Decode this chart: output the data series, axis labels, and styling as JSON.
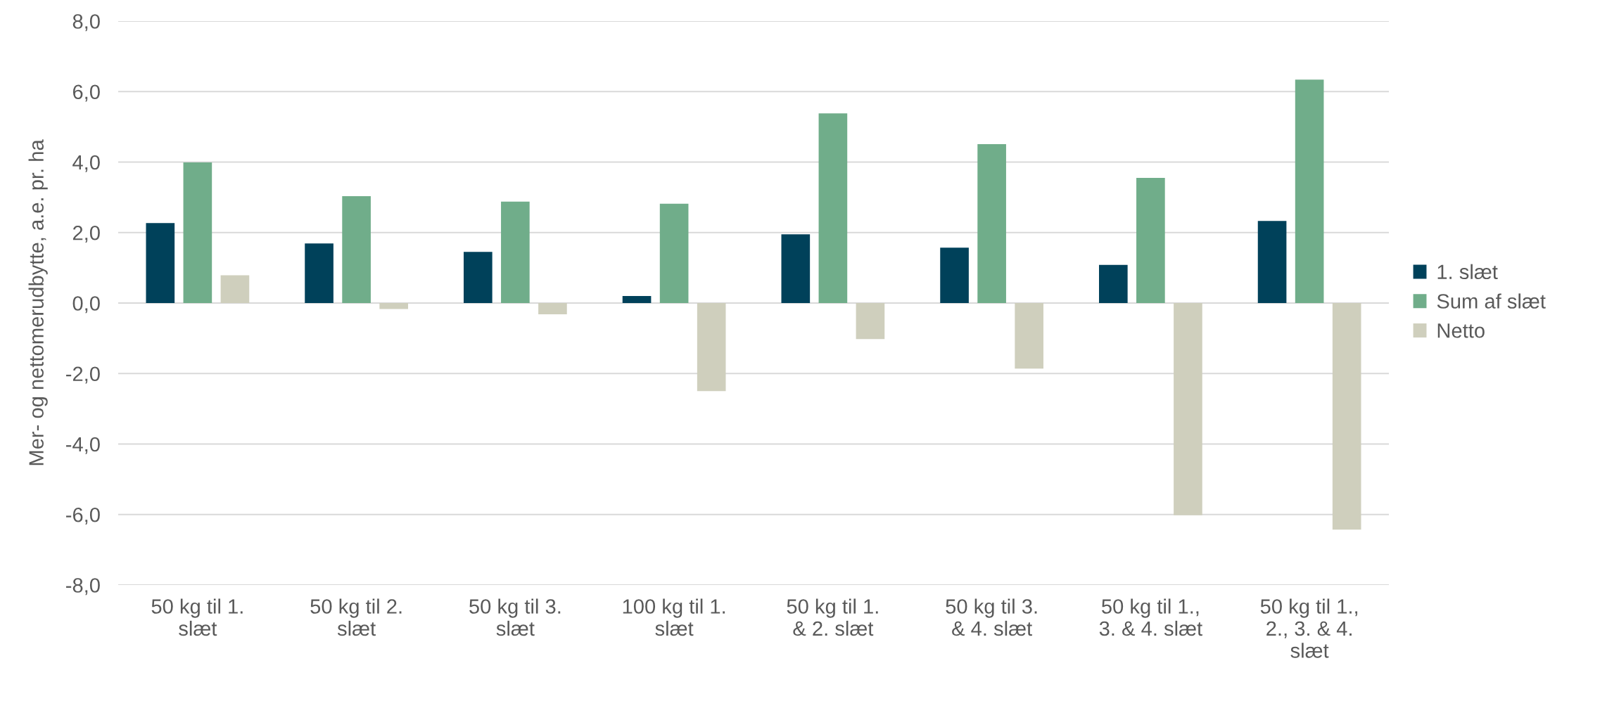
{
  "chart_data": {
    "type": "bar",
    "ylabel": "Mer- og nettomerudbytte, a.e. pr. ha",
    "categories": [
      "50 kg til 1. slæt",
      "50 kg til 2. slæt",
      "50 kg til 3. slæt",
      "100 kg til 1. slæt",
      "50 kg til 1. & 2. slæt",
      "50 kg til 3. & 4. slæt",
      "50 kg til 1., 3. & 4. slæt",
      "50 kg til 1., 2., 3. & 4. slæt"
    ],
    "series": [
      {
        "name": "1. slæt",
        "color": "#00415a",
        "values": [
          2.27,
          1.69,
          1.45,
          0.2,
          1.95,
          1.57,
          1.08,
          2.33
        ]
      },
      {
        "name": "Sum af slæt",
        "color": "#70ad8a",
        "values": [
          3.99,
          3.03,
          2.88,
          2.82,
          5.38,
          4.51,
          3.55,
          6.34
        ]
      },
      {
        "name": "Netto",
        "color": "#cfcfbd",
        "values": [
          0.79,
          -0.17,
          -0.32,
          -2.5,
          -1.02,
          -1.86,
          -6.02,
          -6.43
        ]
      }
    ],
    "ylim": [
      -8,
      8
    ],
    "yticks": [
      {
        "value": -8,
        "label": "-8,0"
      },
      {
        "value": -6,
        "label": "-6,0"
      },
      {
        "value": -4,
        "label": "-4,0"
      },
      {
        "value": -2,
        "label": "-2,0"
      },
      {
        "value": 0,
        "label": "0,0"
      },
      {
        "value": 2,
        "label": "2,0"
      },
      {
        "value": 4,
        "label": "4,0"
      },
      {
        "value": 6,
        "label": "6,0"
      },
      {
        "value": 8,
        "label": "8,0"
      }
    ],
    "grid": "y",
    "legend": "right"
  }
}
